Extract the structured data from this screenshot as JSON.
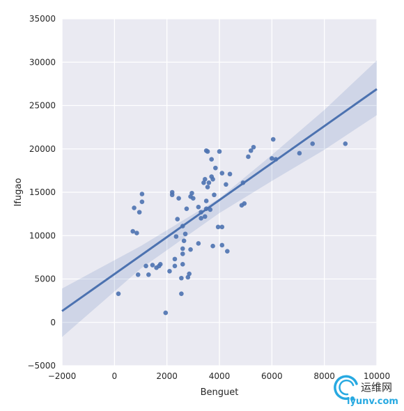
{
  "chart_data": {
    "type": "scatter",
    "xlabel": "Benguet",
    "ylabel": "Ifugao",
    "xlim": [
      -2000,
      10000
    ],
    "ylim": [
      -5000,
      35000
    ],
    "x_ticks": [
      -2000,
      0,
      2000,
      4000,
      6000,
      8000,
      10000
    ],
    "y_ticks": [
      -5000,
      0,
      5000,
      10000,
      15000,
      20000,
      25000,
      30000,
      35000
    ],
    "x_tick_labels": [
      "−2000",
      "0",
      "2000",
      "4000",
      "6000",
      "8000",
      "10000"
    ],
    "y_tick_labels": [
      "−5000",
      "0",
      "5000",
      "10000",
      "15000",
      "20000",
      "25000",
      "30000",
      "35000"
    ],
    "grid": true,
    "background": "#eaeaf2",
    "point_color": "#4c72b0",
    "line_color": "#4c72b0",
    "regression": {
      "line": [
        [
          -2000,
          1300
        ],
        [
          10000,
          26900
        ]
      ],
      "ci_band_upper": [
        [
          -2000,
          3900
        ],
        [
          1000,
          8800
        ],
        [
          4000,
          14300
        ],
        [
          6000,
          19300
        ],
        [
          8000,
          24500
        ],
        [
          10000,
          30200
        ]
      ],
      "ci_band_lower": [
        [
          -2000,
          -1700
        ],
        [
          1000,
          6200
        ],
        [
          4000,
          12600
        ],
        [
          6000,
          16300
        ],
        [
          8000,
          19900
        ],
        [
          10000,
          23900
        ]
      ]
    },
    "points": [
      [
        150,
        3300
      ],
      [
        700,
        10500
      ],
      [
        750,
        13200
      ],
      [
        850,
        10300
      ],
      [
        900,
        5500
      ],
      [
        950,
        12700
      ],
      [
        1050,
        13900
      ],
      [
        1050,
        14800
      ],
      [
        1200,
        6500
      ],
      [
        1300,
        5500
      ],
      [
        1450,
        6600
      ],
      [
        1600,
        6300
      ],
      [
        1700,
        6500
      ],
      [
        1750,
        6700
      ],
      [
        1950,
        1100
      ],
      [
        2100,
        5900
      ],
      [
        2200,
        14700
      ],
      [
        2200,
        15000
      ],
      [
        2300,
        7300
      ],
      [
        2300,
        6500
      ],
      [
        2350,
        9900
      ],
      [
        2400,
        11900
      ],
      [
        2450,
        14300
      ],
      [
        2550,
        3300
      ],
      [
        2550,
        5100
      ],
      [
        2600,
        6700
      ],
      [
        2600,
        7900
      ],
      [
        2600,
        8500
      ],
      [
        2600,
        11100
      ],
      [
        2650,
        9400
      ],
      [
        2700,
        10200
      ],
      [
        2750,
        13100
      ],
      [
        2800,
        5200
      ],
      [
        2850,
        5600
      ],
      [
        2900,
        8400
      ],
      [
        2900,
        14500
      ],
      [
        2950,
        14900
      ],
      [
        3000,
        14300
      ],
      [
        3200,
        9100
      ],
      [
        3200,
        13300
      ],
      [
        3300,
        12000
      ],
      [
        3300,
        12700
      ],
      [
        3400,
        16100
      ],
      [
        3450,
        16500
      ],
      [
        3450,
        12200
      ],
      [
        3500,
        13100
      ],
      [
        3500,
        14000
      ],
      [
        3550,
        15600
      ],
      [
        3500,
        19800
      ],
      [
        3550,
        19700
      ],
      [
        3600,
        16100
      ],
      [
        3650,
        13000
      ],
      [
        3700,
        16800
      ],
      [
        3700,
        18800
      ],
      [
        3750,
        8800
      ],
      [
        3750,
        16500
      ],
      [
        3800,
        14700
      ],
      [
        3850,
        17800
      ],
      [
        3950,
        11000
      ],
      [
        4000,
        19700
      ],
      [
        4100,
        8900
      ],
      [
        4100,
        11000
      ],
      [
        4100,
        17200
      ],
      [
        4250,
        15900
      ],
      [
        4300,
        8200
      ],
      [
        4400,
        17100
      ],
      [
        4850,
        13500
      ],
      [
        4900,
        16100
      ],
      [
        4950,
        13700
      ],
      [
        5100,
        19100
      ],
      [
        5200,
        19800
      ],
      [
        5300,
        20200
      ],
      [
        6000,
        18900
      ],
      [
        6050,
        21100
      ],
      [
        6150,
        18800
      ],
      [
        7050,
        19500
      ],
      [
        7550,
        20600
      ],
      [
        8800,
        20600
      ]
    ]
  },
  "watermark": {
    "chinese_text": "运维网",
    "url_text": "iyunv.com"
  }
}
